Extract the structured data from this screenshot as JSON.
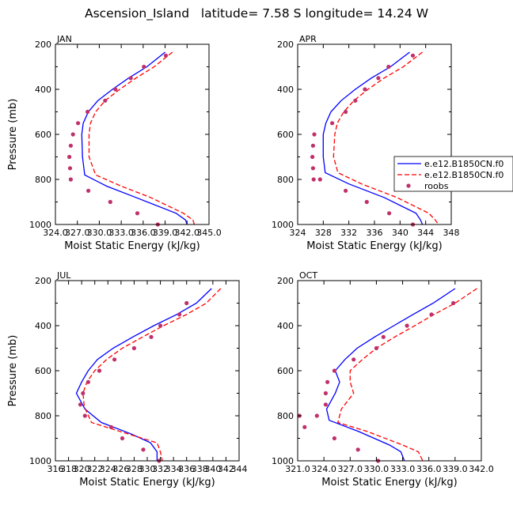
{
  "figure_title": "Ascension_Island   latitude= 7.58 S longitude= 14.24 W",
  "legend": {
    "entries": [
      {
        "label": "e.e12.B1850CN.f0",
        "style": "solid",
        "color": "#0000ff"
      },
      {
        "label": "e.e12.B1850CN.f0",
        "style": "dashed",
        "color": "#ff0000"
      },
      {
        "label": "roobs",
        "style": "dot",
        "color": "#c0306a"
      }
    ]
  },
  "colors": {
    "model1": "#0000ff",
    "model2": "#ff0000",
    "obs": "#c0306a"
  },
  "chart_data": [
    {
      "type": "line",
      "title": "JAN",
      "xlabel": "Moist Static Energy (kJ/kg)",
      "ylabel": "Pressure (mb)",
      "xlim": [
        324.0,
        345.0
      ],
      "ylim": [
        1000,
        200
      ],
      "xticks": [
        324.0,
        327.0,
        330.0,
        333.0,
        336.0,
        339.0,
        342.0,
        345.0
      ],
      "xtick_labels": [
        "324.0",
        "327.0",
        "330.0",
        "333.0",
        "336.0",
        "339.0",
        "342.0",
        "345.0"
      ],
      "yticks": [
        200,
        400,
        600,
        800,
        1000
      ],
      "ytick_labels": [
        "200",
        "400",
        "600",
        "800",
        "1000"
      ],
      "series": [
        {
          "name": "e.e12.B1850CN.f0 (solid)",
          "x": [
            339.0,
            336.5,
            334.0,
            331.8,
            329.8,
            328.5,
            327.8,
            327.6,
            327.7,
            328.0,
            331.0,
            335.0,
            340.5,
            341.8,
            342.0
          ],
          "y": [
            235,
            300,
            350,
            400,
            450,
            500,
            550,
            600,
            700,
            780,
            830,
            880,
            950,
            980,
            1000
          ]
        },
        {
          "name": "e.e12.B1850CN.f0 (dashed)",
          "x": [
            340.0,
            337.5,
            335.0,
            332.8,
            330.8,
            329.5,
            328.8,
            328.6,
            328.6,
            329.5,
            333.0,
            337.0,
            341.5,
            342.8,
            343.0
          ],
          "y": [
            235,
            300,
            350,
            400,
            450,
            500,
            550,
            600,
            700,
            780,
            830,
            880,
            950,
            980,
            1000
          ]
        },
        {
          "name": "roobs",
          "x": [
            339.1,
            336.1,
            334.3,
            332.2,
            330.8,
            328.4,
            327.1,
            326.4,
            326.1,
            325.9,
            326.0,
            326.1,
            328.5,
            331.5,
            335.2,
            338.0
          ],
          "y": [
            250,
            300,
            350,
            400,
            450,
            500,
            550,
            600,
            650,
            700,
            750,
            800,
            850,
            900,
            950,
            1000
          ]
        }
      ]
    },
    {
      "type": "line",
      "title": "APR",
      "xlabel": "Moist Static Energy (kJ/kg)",
      "ylabel": "",
      "xlim": [
        324,
        348
      ],
      "ylim": [
        1000,
        200
      ],
      "xticks": [
        324,
        328,
        332,
        336,
        340,
        344,
        348
      ],
      "xtick_labels": [
        "324",
        "328",
        "332",
        "336",
        "340",
        "344",
        "348"
      ],
      "yticks": [
        200,
        400,
        600,
        800,
        1000
      ],
      "ytick_labels": [
        "200",
        "400",
        "600",
        "800",
        "1000"
      ],
      "series": [
        {
          "name": "e.e12.B1850CN.f0 (solid)",
          "x": [
            341.5,
            338.5,
            335.5,
            333.0,
            330.8,
            329.2,
            328.4,
            328.0,
            328.0,
            328.3,
            332.0,
            337.5,
            342.5,
            343.2,
            343.5
          ],
          "y": [
            235,
            300,
            350,
            400,
            450,
            500,
            550,
            600,
            700,
            770,
            820,
            880,
            950,
            980,
            1000
          ]
        },
        {
          "name": "e.e12.B1850CN.f0 (dashed)",
          "x": [
            343.5,
            340.5,
            337.5,
            335.0,
            332.8,
            331.2,
            330.2,
            329.8,
            329.6,
            330.3,
            334.0,
            339.5,
            344.5,
            345.5,
            346.0
          ],
          "y": [
            235,
            300,
            350,
            400,
            450,
            500,
            550,
            600,
            700,
            770,
            820,
            880,
            950,
            980,
            1000
          ]
        },
        {
          "name": "roobs",
          "x": [
            342.0,
            338.2,
            336.6,
            334.5,
            333.0,
            331.5,
            329.4,
            326.6,
            326.4,
            326.3,
            326.4,
            326.5,
            327.5,
            331.5,
            334.8,
            338.3,
            342.0
          ],
          "y": [
            250,
            300,
            350,
            400,
            450,
            500,
            550,
            600,
            650,
            700,
            750,
            800,
            800,
            850,
            900,
            950,
            1000
          ]
        }
      ]
    },
    {
      "type": "line",
      "title": "JUL",
      "xlabel": "Moist Static Energy (kJ/kg)",
      "ylabel": "Pressure (mb)",
      "xlim": [
        316,
        344
      ],
      "ylim": [
        1000,
        200
      ],
      "xticks": [
        316,
        318,
        320,
        322,
        324,
        326,
        328,
        330,
        332,
        334,
        336,
        338,
        340,
        342,
        344
      ],
      "xtick_labels": [
        "316",
        "318",
        "320",
        "322",
        "324",
        "326",
        "328",
        "330",
        "332",
        "334",
        "336",
        "338",
        "340",
        "342",
        "344"
      ],
      "yticks": [
        200,
        400,
        600,
        800,
        1000
      ],
      "ytick_labels": [
        "200",
        "400",
        "600",
        "800",
        "1000"
      ],
      "series": [
        {
          "name": "e.e12.B1850CN.f0 (solid)",
          "x": [
            339.8,
            337.5,
            334.5,
            331.0,
            327.8,
            324.8,
            322.4,
            321.0,
            320.0,
            319.2,
            320.5,
            323.0,
            327.5,
            330.5,
            331.5,
            331.5
          ],
          "y": [
            235,
            300,
            350,
            400,
            450,
            500,
            550,
            600,
            650,
            700,
            770,
            830,
            880,
            920,
            960,
            1000
          ]
        },
        {
          "name": "e.e12.B1850CN.f0 (dashed)",
          "x": [
            341.2,
            339.0,
            336.0,
            332.5,
            329.3,
            326.2,
            323.8,
            322.0,
            320.8,
            320.2,
            320.4,
            321.5,
            327.0,
            331.5,
            332.0,
            332.3
          ],
          "y": [
            235,
            300,
            350,
            400,
            450,
            500,
            550,
            600,
            650,
            700,
            760,
            830,
            880,
            920,
            960,
            1000
          ]
        },
        {
          "name": "roobs",
          "x": [
            336.0,
            334.9,
            332.0,
            330.6,
            328.0,
            325.0,
            322.7,
            321.0,
            320.2,
            319.8,
            320.5,
            324.5,
            326.2,
            329.4,
            331.8
          ],
          "y": [
            300,
            350,
            400,
            450,
            500,
            550,
            600,
            650,
            700,
            750,
            800,
            850,
            900,
            950,
            1000
          ]
        }
      ]
    },
    {
      "type": "line",
      "title": "OCT",
      "xlabel": "Moist Static Energy (kJ/kg)",
      "ylabel": "",
      "xlim": [
        321.0,
        342.0
      ],
      "ylim": [
        1000,
        200
      ],
      "xticks": [
        321.0,
        324.0,
        327.0,
        330.0,
        333.0,
        336.0,
        339.0,
        342.0
      ],
      "xtick_labels": [
        "321.0",
        "324.0",
        "327.0",
        "330.0",
        "333.0",
        "336.0",
        "339.0",
        "342.0"
      ],
      "yticks": [
        200,
        400,
        600,
        800,
        1000
      ],
      "ytick_labels": [
        "200",
        "400",
        "600",
        "800",
        "1000"
      ],
      "series": [
        {
          "name": "e.e12.B1850CN.f0 (solid)",
          "x": [
            339.0,
            336.5,
            334.2,
            332.0,
            329.8,
            327.8,
            326.4,
            325.3,
            325.8,
            325.3,
            324.3,
            324.6,
            328.0,
            331.5,
            332.8,
            333.2
          ],
          "y": [
            235,
            300,
            350,
            400,
            450,
            500,
            550,
            600,
            650,
            700,
            770,
            820,
            870,
            930,
            960,
            1000
          ]
        },
        {
          "name": "e.e12.B1850CN.f0 (dashed)",
          "x": [
            341.5,
            339.0,
            336.6,
            334.4,
            332.1,
            330.0,
            328.4,
            327.0,
            327.0,
            327.4,
            326.0,
            325.6,
            329.0,
            333.0,
            334.8,
            335.3
          ],
          "y": [
            235,
            300,
            350,
            400,
            450,
            500,
            550,
            600,
            650,
            700,
            770,
            830,
            870,
            930,
            960,
            1000
          ]
        },
        {
          "name": "roobs",
          "x": [
            338.8,
            336.3,
            333.5,
            330.8,
            330.0,
            327.4,
            325.2,
            324.4,
            324.2,
            324.2,
            323.2,
            321.2,
            321.8,
            325.2,
            327.9,
            330.2
          ],
          "y": [
            300,
            350,
            400,
            450,
            500,
            550,
            600,
            650,
            700,
            750,
            800,
            800,
            850,
            900,
            950,
            1000
          ]
        }
      ]
    }
  ]
}
